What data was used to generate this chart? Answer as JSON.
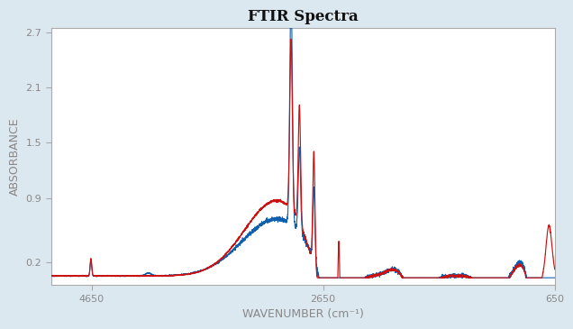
{
  "title": "FTIR Spectra",
  "xlabel": "WAVENUMBER (cm⁻¹)",
  "ylabel": "ABSORBANCE",
  "background_color": "#dce8f0",
  "plot_bg_color": "#ffffff",
  "x_min": 650,
  "x_max": 5000,
  "y_min": -0.05,
  "y_max": 2.75,
  "yticks": [
    0.2,
    0.9,
    1.5,
    2.1,
    2.7
  ],
  "xticks": [
    4650,
    2650,
    650
  ],
  "blue_color": "#1060b0",
  "red_color": "#cc1111",
  "title_fontsize": 12,
  "axis_label_fontsize": 9
}
